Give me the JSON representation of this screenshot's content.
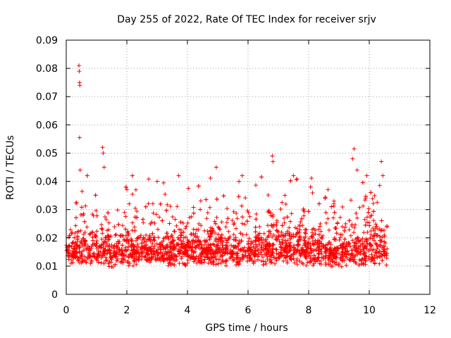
{
  "chart_data": {
    "type": "scatter",
    "title": "Day 255 of 2022, Rate Of TEC Index for receiver srjv",
    "xlabel": "GPS time / hours",
    "ylabel": "ROTI / TECUs",
    "xlim": [
      0,
      12
    ],
    "ylim": [
      0,
      0.09
    ],
    "x_ticks": [
      "0",
      "2",
      "4",
      "6",
      "8",
      "10",
      "12"
    ],
    "y_ticks": [
      "0",
      "0.01",
      "0.02",
      "0.03",
      "0.04",
      "0.05",
      "0.06",
      "0.07",
      "0.08",
      "0.09"
    ],
    "x_tick_values": [
      0,
      2,
      4,
      6,
      8,
      10,
      12
    ],
    "y_tick_values": [
      0,
      0.01,
      0.02,
      0.03,
      0.04,
      0.05,
      0.06,
      0.07,
      0.08,
      0.09
    ],
    "grid": true,
    "marker": "+",
    "color": "#ff0000",
    "series": [
      {
        "name": "ROTI",
        "x_range": [
          0,
          10.6
        ],
        "typical_range": [
          0.005,
          0.025
        ],
        "notable_points": [
          {
            "x": 0.42,
            "y": 0.081
          },
          {
            "x": 0.43,
            "y": 0.079
          },
          {
            "x": 0.44,
            "y": 0.075
          },
          {
            "x": 0.45,
            "y": 0.074
          },
          {
            "x": 0.44,
            "y": 0.0555
          },
          {
            "x": 0.46,
            "y": 0.044
          },
          {
            "x": 1.2,
            "y": 0.052
          },
          {
            "x": 1.22,
            "y": 0.05
          },
          {
            "x": 1.25,
            "y": 0.045
          },
          {
            "x": 2.3,
            "y": 0.037
          },
          {
            "x": 3.0,
            "y": 0.04
          },
          {
            "x": 4.95,
            "y": 0.045
          },
          {
            "x": 5.7,
            "y": 0.04
          },
          {
            "x": 6.8,
            "y": 0.049
          },
          {
            "x": 6.82,
            "y": 0.047
          },
          {
            "x": 7.5,
            "y": 0.042
          },
          {
            "x": 9.5,
            "y": 0.0515
          },
          {
            "x": 9.45,
            "y": 0.048
          },
          {
            "x": 9.6,
            "y": 0.044
          },
          {
            "x": 10.4,
            "y": 0.047
          },
          {
            "x": 10.45,
            "y": 0.042
          }
        ]
      }
    ]
  }
}
